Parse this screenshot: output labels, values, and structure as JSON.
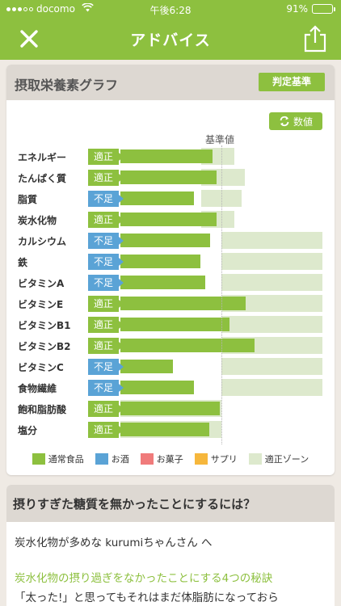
{
  "status_bar": {
    "carrier": "docomo",
    "time": "午後6:28",
    "battery_percent": "91%",
    "battery_level": 0.91
  },
  "nav": {
    "title": "アドバイス",
    "close_icon": "close-icon",
    "share_icon": "share-icon"
  },
  "graph_card": {
    "title": "摂取栄養素グラフ",
    "criteria_button": "判定基準",
    "value_button": "数値",
    "reference_label": "基準値"
  },
  "chart_data": {
    "type": "bar",
    "orientation": "horizontal",
    "reference_value": 100,
    "xlim": [
      0,
      200
    ],
    "categories": [
      "エネルギー",
      "たんぱく質",
      "脂質",
      "炭水化物",
      "カルシウム",
      "鉄",
      "ビタミンA",
      "ビタミンE",
      "ビタミンB1",
      "ビタミンB2",
      "ビタミンC",
      "食物繊維",
      "飽和脂肪酸",
      "塩分"
    ],
    "status": [
      "適正",
      "適正",
      "不足",
      "適正",
      "不足",
      "不足",
      "不足",
      "適正",
      "適正",
      "適正",
      "不足",
      "不足",
      "適正",
      "適正"
    ],
    "series": [
      {
        "name": "通常食品",
        "values": [
          91,
          95,
          73,
          95,
          89,
          79,
          84,
          124,
          108,
          133,
          52,
          73,
          98,
          88
        ]
      }
    ],
    "appropriate_zone": [
      [
        80,
        113
      ],
      [
        80,
        123
      ],
      [
        80,
        120
      ],
      [
        80,
        113
      ],
      [
        100,
        200
      ],
      [
        100,
        200
      ],
      [
        100,
        200
      ],
      [
        100,
        200
      ],
      [
        100,
        200
      ],
      [
        100,
        200
      ],
      [
        100,
        200
      ],
      [
        100,
        200
      ],
      [
        0,
        100
      ],
      [
        0,
        100
      ]
    ],
    "status_colors": {
      "適正": "#8dc03f",
      "不足": "#5aa3d6"
    },
    "legend": [
      {
        "label": "通常食品",
        "color": "#8dc03f"
      },
      {
        "label": "お酒",
        "color": "#5aa3d6"
      },
      {
        "label": "お菓子",
        "color": "#f07b7b"
      },
      {
        "label": "サプリ",
        "color": "#f6b73c"
      },
      {
        "label": "適正ゾーン",
        "color": "#dde9cd"
      }
    ],
    "legend_position": "bottom",
    "grid": false
  },
  "advice_card": {
    "title": "摂りすぎた糖質を無かったことにするには？",
    "greeting": "炭水化物が多めな kurumiちゃんさん へ",
    "article_link": "炭水化物の摂り過ぎをなかったことにする4つの秘訣",
    "article_text": "「太った!」と思ってもそれはまだ体脂肪になっておら"
  },
  "colors": {
    "brand_green": "#8dc03f",
    "header_bg": "#ddd8d2",
    "page_bg": "#efeae4"
  }
}
